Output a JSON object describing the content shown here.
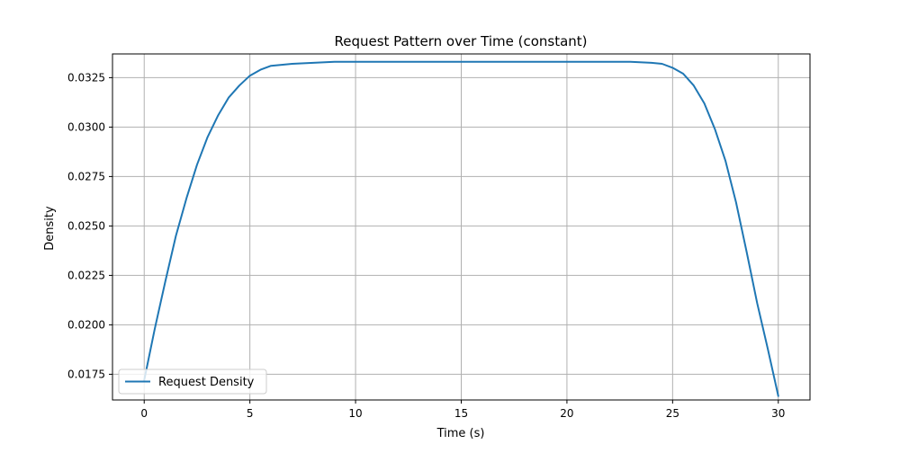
{
  "chart_data": {
    "type": "line",
    "title": "Request Pattern over Time (constant)",
    "xlabel": "Time (s)",
    "ylabel": "Density",
    "xlim": [
      -1.5,
      31.5
    ],
    "ylim": [
      0.0162,
      0.0337
    ],
    "x_ticks": [
      0,
      5,
      10,
      15,
      20,
      25,
      30
    ],
    "x_tick_labels": [
      "0",
      "5",
      "10",
      "15",
      "20",
      "25",
      "30"
    ],
    "y_ticks": [
      0.0175,
      0.02,
      0.0225,
      0.025,
      0.0275,
      0.03,
      0.0325
    ],
    "y_tick_labels": [
      "0.0175",
      "0.0200",
      "0.0225",
      "0.0250",
      "0.0275",
      "0.0300",
      "0.0325"
    ],
    "grid": true,
    "legend_position": "lower-left",
    "series": [
      {
        "name": "Request Density",
        "color": "#1f77b4",
        "x": [
          0,
          0.5,
          1,
          1.5,
          2,
          2.5,
          3,
          3.5,
          4,
          4.5,
          5,
          5.5,
          6,
          7,
          8,
          9,
          10,
          12,
          15,
          18,
          20,
          22,
          23,
          24,
          24.5,
          25,
          25.5,
          26,
          26.5,
          27,
          27.5,
          28,
          28.5,
          29,
          29.5,
          30
        ],
        "values": [
          0.0172,
          0.0198,
          0.0222,
          0.0245,
          0.0264,
          0.0281,
          0.0295,
          0.0306,
          0.0315,
          0.0321,
          0.0326,
          0.0329,
          0.0331,
          0.0332,
          0.03325,
          0.0333,
          0.0333,
          0.0333,
          0.0333,
          0.0333,
          0.0333,
          0.0333,
          0.0333,
          0.03325,
          0.0332,
          0.033,
          0.0327,
          0.0321,
          0.0312,
          0.0299,
          0.0283,
          0.0262,
          0.0237,
          0.0211,
          0.0188,
          0.0164
        ]
      }
    ]
  }
}
